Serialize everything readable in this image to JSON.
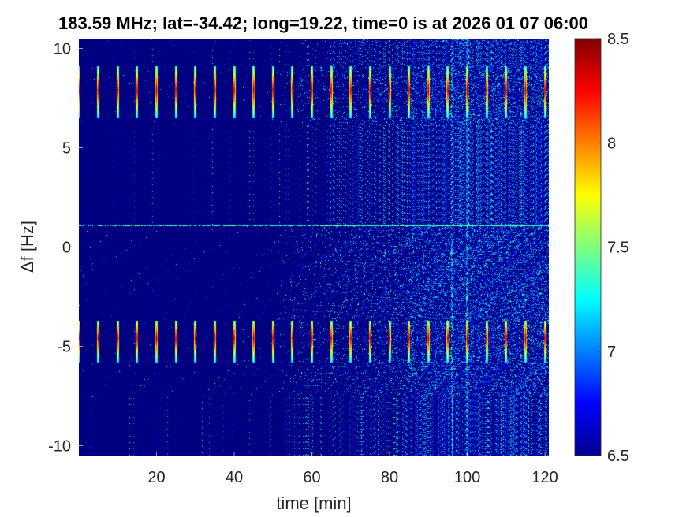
{
  "chart_data": {
    "type": "heatmap",
    "title": "183.59 MHz;  lat=-34.42; long=19.22, time=0 is at 2026 01 07 06:00",
    "xlabel": "time [min]",
    "ylabel": "Δf [Hz]",
    "xlim": [
      0,
      121
    ],
    "ylim": [
      -10.5,
      10.5
    ],
    "x_ticks": [
      20,
      40,
      60,
      80,
      100,
      120
    ],
    "y_ticks": [
      -10,
      -5,
      0,
      5,
      10
    ],
    "colorbar": {
      "colormap": "jet",
      "clim": [
        6.5,
        8.5
      ],
      "ticks": [
        6.5,
        7,
        7.5,
        8,
        8.5
      ]
    },
    "background_level": 6.5,
    "features": {
      "periodic_bursts": {
        "period_min": 5,
        "first_burst_min": 0,
        "last_burst_min": 120,
        "upper_band_center_hz": 7.9,
        "upper_band_span_hz": [
          6.5,
          9.1
        ],
        "lower_band_center_hz": -4.6,
        "lower_band_span_hz": [
          -5.8,
          -3.7
        ],
        "peak_level": 8.5
      },
      "carrier_line": {
        "freq_hz": 1.1,
        "level": 7.4
      },
      "noise_increase_after_min": 48,
      "strong_vertical_lines_min": [
        96,
        100
      ]
    }
  }
}
